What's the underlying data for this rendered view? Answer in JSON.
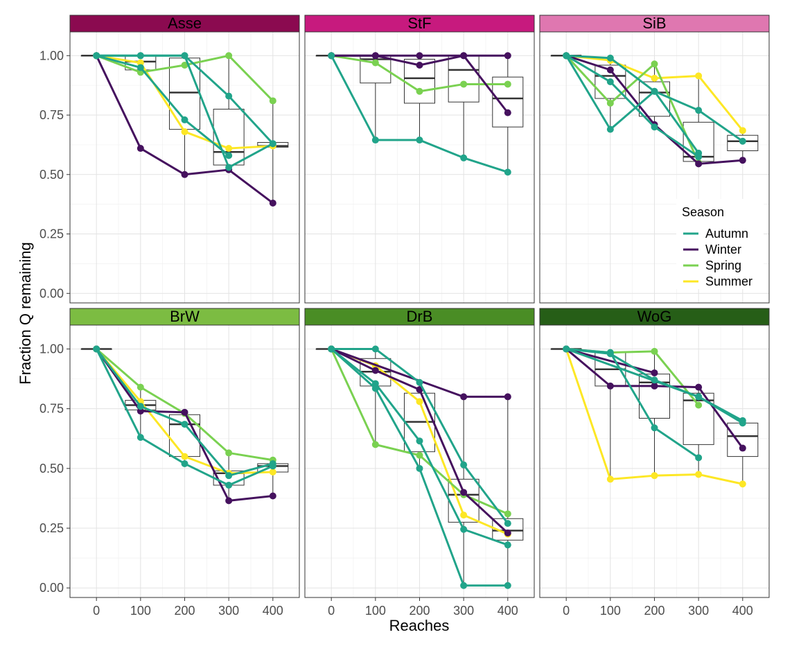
{
  "chart_data": {
    "type": "line",
    "description_free": true,
    "xlabel": "Reaches",
    "ylabel": "Fraction Q remaining",
    "x_ticks": [
      0,
      100,
      200,
      300,
      400
    ],
    "y_ticks": [
      "0.00",
      "0.25",
      "0.50",
      "0.75",
      "1.00"
    ],
    "xlim": [
      -60,
      460
    ],
    "ylim": [
      -0.04,
      1.1
    ],
    "legend": {
      "title": "Season",
      "position": "inside-top-right-panel",
      "entries": [
        {
          "name": "Autumn",
          "color": "#21a48a"
        },
        {
          "name": "Winter",
          "color": "#45115e"
        },
        {
          "name": "Spring",
          "color": "#7ad151"
        },
        {
          "name": "Summer",
          "color": "#fde725"
        }
      ]
    },
    "panels": [
      {
        "label": "Asse",
        "strip_color": "#8b0a50",
        "boxes": [
          {
            "x": 0,
            "q1": 1.0,
            "median": 1.0,
            "q3": 1.0,
            "min": 1.0,
            "max": 1.0
          },
          {
            "x": 100,
            "q1": 0.94,
            "median": 0.975,
            "q3": 1.0,
            "min": 0.93,
            "max": 1.0
          },
          {
            "x": 200,
            "q1": 0.69,
            "median": 0.845,
            "q3": 0.99,
            "min": 0.5,
            "max": 1.0
          },
          {
            "x": 300,
            "q1": 0.54,
            "median": 0.595,
            "q3": 0.775,
            "min": 0.52,
            "max": 1.0
          },
          {
            "x": 400,
            "q1": 0.615,
            "median": 0.62,
            "q3": 0.635,
            "min": 0.38,
            "max": 0.81
          }
        ],
        "series": [
          {
            "season": "Autumn",
            "values": [
              1.0,
              1.0,
              1.0,
              0.83,
              0.63
            ]
          },
          {
            "season": "Autumn",
            "values": [
              1.0,
              0.95,
              0.73,
              0.58,
              null
            ]
          },
          {
            "season": "Autumn",
            "values": [
              1.0,
              1.0,
              1.0,
              0.53,
              0.63
            ]
          },
          {
            "season": "Winter",
            "values": [
              1.0,
              0.61,
              0.5,
              0.52,
              0.38
            ]
          },
          {
            "season": "Spring",
            "values": [
              1.0,
              0.93,
              0.96,
              1.0,
              0.81
            ]
          },
          {
            "season": "Summer",
            "values": [
              1.0,
              0.97,
              0.68,
              0.61,
              0.62
            ]
          }
        ]
      },
      {
        "label": "StF",
        "strip_color": "#c71a7e",
        "boxes": [
          {
            "x": 0,
            "q1": 1.0,
            "median": 1.0,
            "q3": 1.0,
            "min": 1.0,
            "max": 1.0
          },
          {
            "x": 100,
            "q1": 0.885,
            "median": 0.985,
            "q3": 1.0,
            "min": 0.645,
            "max": 1.0
          },
          {
            "x": 200,
            "q1": 0.8,
            "median": 0.905,
            "q3": 0.985,
            "min": 0.645,
            "max": 1.0
          },
          {
            "x": 300,
            "q1": 0.805,
            "median": 0.94,
            "q3": 1.0,
            "min": 0.57,
            "max": 1.0
          },
          {
            "x": 400,
            "q1": 0.7,
            "median": 0.82,
            "q3": 0.91,
            "min": 0.51,
            "max": 1.0
          }
        ],
        "series": [
          {
            "season": "Autumn",
            "values": [
              1.0,
              0.645,
              0.645,
              0.57,
              0.51
            ]
          },
          {
            "season": "Winter",
            "values": [
              1.0,
              1.0,
              1.0,
              1.0,
              1.0
            ]
          },
          {
            "season": "Winter",
            "values": [
              1.0,
              1.0,
              0.96,
              1.0,
              0.76
            ]
          },
          {
            "season": "Spring",
            "values": [
              1.0,
              0.97,
              0.85,
              0.88,
              0.88
            ]
          }
        ]
      },
      {
        "label": "SiB",
        "strip_color": "#df77b0",
        "boxes": [
          {
            "x": 0,
            "q1": 1.0,
            "median": 1.0,
            "q3": 1.0,
            "min": 1.0,
            "max": 1.0
          },
          {
            "x": 100,
            "q1": 0.82,
            "median": 0.915,
            "q3": 0.96,
            "min": 0.69,
            "max": 0.99
          },
          {
            "x": 200,
            "q1": 0.745,
            "median": 0.845,
            "q3": 0.89,
            "min": 0.7,
            "max": 0.965
          },
          {
            "x": 300,
            "q1": 0.555,
            "median": 0.575,
            "q3": 0.72,
            "min": 0.545,
            "max": 0.915
          },
          {
            "x": 400,
            "q1": 0.6,
            "median": 0.64,
            "q3": 0.665,
            "min": 0.56,
            "max": 0.685
          }
        ],
        "series": [
          {
            "season": "Autumn",
            "values": [
              1.0,
              0.99,
              0.85,
              0.77,
              0.64
            ]
          },
          {
            "season": "Autumn",
            "values": [
              1.0,
              0.69,
              0.85,
              0.59,
              null
            ]
          },
          {
            "season": "Autumn",
            "values": [
              1.0,
              0.89,
              0.7,
              0.575,
              null
            ]
          },
          {
            "season": "Winter",
            "values": [
              1.0,
              0.94,
              0.71,
              0.545,
              0.56
            ]
          },
          {
            "season": "Spring",
            "values": [
              1.0,
              0.8,
              0.965,
              0.55,
              null
            ]
          },
          {
            "season": "Summer",
            "values": [
              1.0,
              0.98,
              0.905,
              0.915,
              0.685
            ]
          }
        ]
      },
      {
        "label": "BrW",
        "strip_color": "#7cbc42",
        "boxes": [
          {
            "x": 0,
            "q1": 1.0,
            "median": 1.0,
            "q3": 1.0,
            "min": 1.0,
            "max": 1.0
          },
          {
            "x": 100,
            "q1": 0.745,
            "median": 0.765,
            "q3": 0.785,
            "min": 0.63,
            "max": 0.84
          },
          {
            "x": 200,
            "q1": 0.55,
            "median": 0.685,
            "q3": 0.725,
            "min": 0.52,
            "max": 0.735
          },
          {
            "x": 300,
            "q1": 0.43,
            "median": 0.48,
            "q3": 0.49,
            "min": 0.365,
            "max": 0.565
          },
          {
            "x": 400,
            "q1": 0.485,
            "median": 0.51,
            "q3": 0.52,
            "min": 0.385,
            "max": 0.535
          }
        ],
        "series": [
          {
            "season": "Autumn",
            "values": [
              1.0,
              0.63,
              0.52,
              0.43,
              0.51
            ]
          },
          {
            "season": "Autumn",
            "values": [
              1.0,
              0.76,
              0.685,
              0.47,
              0.52
            ]
          },
          {
            "season": "Winter",
            "values": [
              1.0,
              0.74,
              0.735,
              0.365,
              0.385
            ]
          },
          {
            "season": "Spring",
            "values": [
              1.0,
              0.84,
              0.73,
              0.565,
              0.535
            ]
          },
          {
            "season": "Summer",
            "values": [
              1.0,
              0.78,
              0.55,
              0.48,
              0.485
            ]
          }
        ]
      },
      {
        "label": "DrB",
        "strip_color": "#4a8d25",
        "boxes": [
          {
            "x": 0,
            "q1": 1.0,
            "median": 1.0,
            "q3": 1.0,
            "min": 1.0,
            "max": 1.0
          },
          {
            "x": 100,
            "q1": 0.845,
            "median": 0.905,
            "q3": 0.96,
            "min": 0.6,
            "max": 1.0
          },
          {
            "x": 200,
            "q1": 0.57,
            "median": 0.695,
            "q3": 0.815,
            "min": 0.5,
            "max": 0.86
          },
          {
            "x": 300,
            "q1": 0.275,
            "median": 0.39,
            "q3": 0.455,
            "min": 0.01,
            "max": 0.8
          },
          {
            "x": 400,
            "q1": 0.2,
            "median": 0.24,
            "q3": 0.29,
            "min": 0.01,
            "max": 0.8
          }
        ],
        "series": [
          {
            "season": "Autumn",
            "values": [
              1.0,
              1.0,
              0.86,
              0.515,
              0.27
            ]
          },
          {
            "season": "Autumn",
            "values": [
              1.0,
              0.855,
              0.615,
              0.245,
              0.18
            ]
          },
          {
            "season": "Autumn",
            "values": [
              1.0,
              0.835,
              0.5,
              0.01,
              0.01
            ]
          },
          {
            "season": "Winter",
            "values": [
              1.0,
              0.91,
              0.83,
              0.4,
              0.23
            ]
          },
          {
            "season": "Winter",
            "values": [
              1.0,
              null,
              null,
              0.8,
              0.8
            ]
          },
          {
            "season": "Spring",
            "values": [
              1.0,
              0.6,
              0.555,
              0.39,
              0.31
            ]
          },
          {
            "season": "Summer",
            "values": [
              1.0,
              0.93,
              0.78,
              0.305,
              0.225
            ]
          }
        ]
      },
      {
        "label": "WoG",
        "strip_color": "#265e17",
        "boxes": [
          {
            "x": 0,
            "q1": 1.0,
            "median": 1.0,
            "q3": 1.0,
            "min": 1.0,
            "max": 1.0
          },
          {
            "x": 100,
            "q1": 0.845,
            "median": 0.915,
            "q3": 0.985,
            "min": 0.455,
            "max": 0.99
          },
          {
            "x": 200,
            "q1": 0.71,
            "median": 0.86,
            "q3": 0.895,
            "min": 0.47,
            "max": 0.99
          },
          {
            "x": 300,
            "q1": 0.6,
            "median": 0.785,
            "q3": 0.815,
            "min": 0.475,
            "max": 0.84
          },
          {
            "x": 400,
            "q1": 0.55,
            "median": 0.635,
            "q3": 0.69,
            "min": 0.435,
            "max": 0.7
          }
        ],
        "series": [
          {
            "season": "Autumn",
            "values": [
              1.0,
              0.98,
              0.87,
              0.8,
              0.7
            ]
          },
          {
            "season": "Autumn",
            "values": [
              1.0,
              0.985,
              0.67,
              0.545,
              null
            ]
          },
          {
            "season": "Autumn",
            "values": [
              1.0,
              null,
              null,
              0.8,
              0.69
            ]
          },
          {
            "season": "Winter",
            "values": [
              1.0,
              0.845,
              0.845,
              0.84,
              0.585
            ]
          },
          {
            "season": "Winter",
            "values": [
              1.0,
              null,
              0.9,
              null,
              null
            ]
          },
          {
            "season": "Spring",
            "values": [
              1.0,
              0.985,
              0.99,
              0.765,
              null
            ]
          },
          {
            "season": "Summer",
            "values": [
              1.0,
              0.455,
              0.47,
              0.475,
              0.435
            ]
          }
        ]
      }
    ]
  }
}
